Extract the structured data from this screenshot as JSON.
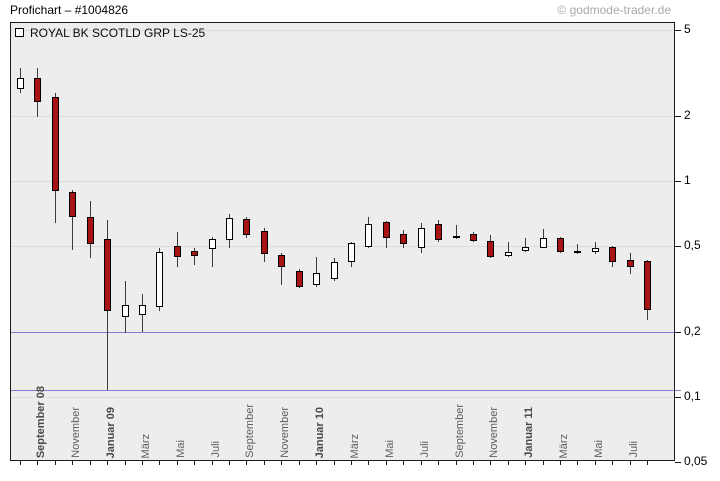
{
  "header": {
    "title": "Profichart – #1004826",
    "watermark": "© godmode-trader.de"
  },
  "legend": {
    "series_label": "ROYAL BK SCOTLD GRP LS-25",
    "checkbox_checked": false
  },
  "colors": {
    "up_body": "#ffffff",
    "down_body": "#a81414",
    "body_border": "#000000",
    "wick": "#3c3c3c",
    "grid": "#dcdcdc",
    "support_line": "#7e7ed2",
    "plot_background": "#ededed",
    "frame": "#1c1c1c",
    "watermark_text": "#a9a9a9",
    "axis_label_text": "#5f5f5f"
  },
  "chart_data": {
    "type": "candlestick",
    "timeframe": "monthly",
    "y_scale": "log",
    "ylim": [
      0.05,
      5.5
    ],
    "grid": "horizontal-only",
    "y_ticks": [
      {
        "label": "5",
        "value": 5
      },
      {
        "label": "2",
        "value": 2
      },
      {
        "label": "1",
        "value": 1
      },
      {
        "label": "0,5",
        "value": 0.5
      },
      {
        "label": "0,2",
        "value": 0.2
      },
      {
        "label": "0,1",
        "value": 0.1
      },
      {
        "label": "0,05",
        "value": 0.05
      }
    ],
    "gridline_values": [
      5,
      2,
      1,
      0.5,
      0.2,
      0.1
    ],
    "support_lines": [
      {
        "value": 0.2
      },
      {
        "value": 0.108
      }
    ],
    "x_labels": [
      {
        "label": "September 08",
        "candle_index": 1,
        "bold": true
      },
      {
        "label": "November",
        "candle_index": 3,
        "bold": false
      },
      {
        "label": "Januar 09",
        "candle_index": 5,
        "bold": true
      },
      {
        "label": "März",
        "candle_index": 7,
        "bold": false
      },
      {
        "label": "Mai",
        "candle_index": 9,
        "bold": false
      },
      {
        "label": "Juli",
        "candle_index": 11,
        "bold": false
      },
      {
        "label": "September",
        "candle_index": 13,
        "bold": false
      },
      {
        "label": "November",
        "candle_index": 15,
        "bold": false
      },
      {
        "label": "Januar 10",
        "candle_index": 17,
        "bold": true
      },
      {
        "label": "März",
        "candle_index": 19,
        "bold": false
      },
      {
        "label": "Mai",
        "candle_index": 21,
        "bold": false
      },
      {
        "label": "Juli",
        "candle_index": 23,
        "bold": false
      },
      {
        "label": "September",
        "candle_index": 25,
        "bold": false
      },
      {
        "label": "November",
        "candle_index": 27,
        "bold": false
      },
      {
        "label": "Januar 11",
        "candle_index": 29,
        "bold": true
      },
      {
        "label": "März",
        "candle_index": 31,
        "bold": false
      },
      {
        "label": "Mai",
        "candle_index": 33,
        "bold": false
      },
      {
        "label": "Juli",
        "candle_index": 35,
        "bold": false
      }
    ],
    "candles": [
      {
        "t": "Aug 08",
        "o": 2.68,
        "h": 3.33,
        "l": 2.56,
        "c": 3.0
      },
      {
        "t": "Sep 08",
        "o": 3.0,
        "h": 3.33,
        "l": 1.98,
        "c": 2.32
      },
      {
        "t": "Okt 08",
        "o": 2.45,
        "h": 2.56,
        "l": 0.64,
        "c": 0.9
      },
      {
        "t": "Nov 08",
        "o": 0.89,
        "h": 0.91,
        "l": 0.48,
        "c": 0.68
      },
      {
        "t": "Dez 08",
        "o": 0.68,
        "h": 0.81,
        "l": 0.44,
        "c": 0.51
      },
      {
        "t": "Jan 09",
        "o": 0.54,
        "h": 0.66,
        "l": 0.108,
        "c": 0.25
      },
      {
        "t": "Feb 09",
        "o": 0.234,
        "h": 0.344,
        "l": 0.198,
        "c": 0.268
      },
      {
        "t": "Mär 09",
        "o": 0.24,
        "h": 0.3,
        "l": 0.2,
        "c": 0.268
      },
      {
        "t": "Apr 09",
        "o": 0.26,
        "h": 0.49,
        "l": 0.25,
        "c": 0.47
      },
      {
        "t": "Mai 09",
        "o": 0.5,
        "h": 0.58,
        "l": 0.4,
        "c": 0.444
      },
      {
        "t": "Jun 09",
        "o": 0.475,
        "h": 0.49,
        "l": 0.41,
        "c": 0.449
      },
      {
        "t": "Jul 09",
        "o": 0.486,
        "h": 0.55,
        "l": 0.4,
        "c": 0.538
      },
      {
        "t": "Aug 09",
        "o": 0.533,
        "h": 0.705,
        "l": 0.49,
        "c": 0.675
      },
      {
        "t": "Sep 09",
        "o": 0.667,
        "h": 0.682,
        "l": 0.544,
        "c": 0.56
      },
      {
        "t": "Okt 09",
        "o": 0.585,
        "h": 0.605,
        "l": 0.42,
        "c": 0.46
      },
      {
        "t": "Nov 09",
        "o": 0.455,
        "h": 0.465,
        "l": 0.33,
        "c": 0.398
      },
      {
        "t": "Dez 09",
        "o": 0.385,
        "h": 0.393,
        "l": 0.319,
        "c": 0.322
      },
      {
        "t": "Jan 10",
        "o": 0.33,
        "h": 0.444,
        "l": 0.322,
        "c": 0.373
      },
      {
        "t": "Feb 10",
        "o": 0.352,
        "h": 0.438,
        "l": 0.345,
        "c": 0.42
      },
      {
        "t": "Mär 10",
        "o": 0.42,
        "h": 0.52,
        "l": 0.398,
        "c": 0.515
      },
      {
        "t": "Apr 10",
        "o": 0.496,
        "h": 0.682,
        "l": 0.49,
        "c": 0.63
      },
      {
        "t": "Mai 10",
        "o": 0.643,
        "h": 0.656,
        "l": 0.49,
        "c": 0.544
      },
      {
        "t": "Jun 10",
        "o": 0.566,
        "h": 0.59,
        "l": 0.49,
        "c": 0.51
      },
      {
        "t": "Jul 10",
        "o": 0.49,
        "h": 0.636,
        "l": 0.465,
        "c": 0.605
      },
      {
        "t": "Aug 10",
        "o": 0.63,
        "h": 0.66,
        "l": 0.52,
        "c": 0.533
      },
      {
        "t": "Sep 10",
        "o": 0.544,
        "h": 0.623,
        "l": 0.538,
        "c": 0.555
      },
      {
        "t": "Okt 10",
        "o": 0.566,
        "h": 0.578,
        "l": 0.52,
        "c": 0.527
      },
      {
        "t": "Nov 10",
        "o": 0.527,
        "h": 0.56,
        "l": 0.438,
        "c": 0.444
      },
      {
        "t": "Dez 10",
        "o": 0.449,
        "h": 0.52,
        "l": 0.444,
        "c": 0.47
      },
      {
        "t": "Jan 11",
        "o": 0.475,
        "h": 0.544,
        "l": 0.47,
        "c": 0.496
      },
      {
        "t": "Feb 11",
        "o": 0.49,
        "h": 0.597,
        "l": 0.488,
        "c": 0.544
      },
      {
        "t": "Mär 11",
        "o": 0.544,
        "h": 0.55,
        "l": 0.465,
        "c": 0.47
      },
      {
        "t": "Apr 11",
        "o": 0.475,
        "h": 0.51,
        "l": 0.46,
        "c": 0.47
      },
      {
        "t": "Mai 11",
        "o": 0.47,
        "h": 0.52,
        "l": 0.46,
        "c": 0.49
      },
      {
        "t": "Jun 11",
        "o": 0.496,
        "h": 0.501,
        "l": 0.398,
        "c": 0.42
      },
      {
        "t": "Jul 11",
        "o": 0.43,
        "h": 0.465,
        "l": 0.371,
        "c": 0.398
      },
      {
        "t": "Aug 11",
        "o": 0.425,
        "h": 0.43,
        "l": 0.227,
        "c": 0.253
      }
    ]
  }
}
